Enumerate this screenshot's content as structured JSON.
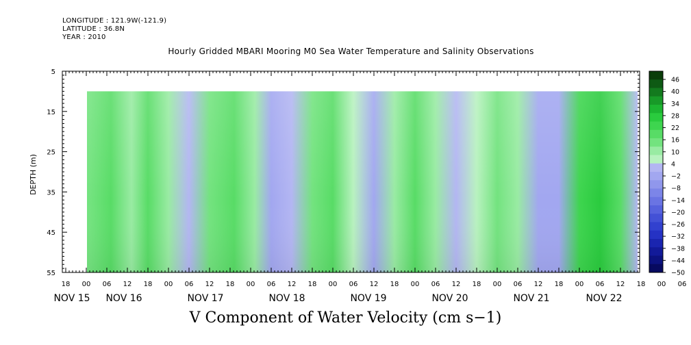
{
  "meta": {
    "longitude": "LONGITUDE : 121.9W(-121.9)",
    "latitude": "LATITUDE : 36.8N",
    "year": "YEAR : 2010"
  },
  "chart_data": {
    "type": "heatmap",
    "title": "Hourly Gridded MBARI Mooring M0 Sea Water Temperature and Salinity Observations",
    "xlabel": "V Component of Water Velocity (cm s−1)",
    "ylabel": "DEPTH (m)",
    "ylim": [
      55,
      5
    ],
    "yticks": [
      "5",
      "15",
      "25",
      "35",
      "45",
      "55"
    ],
    "x_hour_ticks": [
      "18",
      "00",
      "06",
      "12",
      "18",
      "00",
      "06",
      "12",
      "18",
      "00",
      "06",
      "12",
      "18",
      "00",
      "06",
      "12",
      "18",
      "00",
      "06",
      "12",
      "18",
      "00",
      "06",
      "12",
      "18",
      "00",
      "06",
      "12",
      "18",
      "00",
      "06",
      "12",
      "18"
    ],
    "x_day_labels": [
      "NOV 15",
      "NOV 16",
      "NOV 17",
      "NOV 18",
      "NOV 19",
      "NOV 20",
      "NOV 21",
      "NOV 22"
    ],
    "x_start_hour": 18,
    "data_depth_range": [
      10,
      55
    ],
    "colorbar": {
      "labels": [
        "46",
        "40",
        "34",
        "28",
        "22",
        "16",
        "10",
        "4",
        "−2",
        "−8",
        "−14",
        "−20",
        "−26",
        "−32",
        "−38",
        "−44",
        "−50"
      ],
      "positive_colors": [
        "#0a3d0a",
        "#0e5a14",
        "#137a1e",
        "#189a28",
        "#1db531",
        "#2acb3e",
        "#3ed54f",
        "#58dc66",
        "#73e37f",
        "#99eba3",
        "#b8f2bf"
      ],
      "negative_colors": [
        "#b3b6f2",
        "#a2a7f0",
        "#9097ec",
        "#7c85e8",
        "#6a74e3",
        "#5662dd",
        "#4351d6",
        "#3241cf",
        "#2532c4",
        "#1a25b0",
        "#121a99",
        "#0c1280",
        "#070a60"
      ]
    },
    "bands": [
      {
        "day": 0.05,
        "v": 12
      },
      {
        "day": 0.3,
        "v": 18
      },
      {
        "day": 0.55,
        "v": 8
      },
      {
        "day": 0.75,
        "v": 16
      },
      {
        "day": 1.0,
        "v": 6
      },
      {
        "day": 1.25,
        "v": -4
      },
      {
        "day": 1.5,
        "v": 14
      },
      {
        "day": 1.8,
        "v": 20
      },
      {
        "day": 2.05,
        "v": 6
      },
      {
        "day": 2.25,
        "v": -8
      },
      {
        "day": 2.5,
        "v": -6
      },
      {
        "day": 2.75,
        "v": 12
      },
      {
        "day": 3.0,
        "v": 18
      },
      {
        "day": 3.25,
        "v": -2
      },
      {
        "day": 3.5,
        "v": -8
      },
      {
        "day": 3.75,
        "v": 4
      },
      {
        "day": 4.0,
        "v": 16
      },
      {
        "day": 4.25,
        "v": 6
      },
      {
        "day": 4.5,
        "v": -6
      },
      {
        "day": 4.75,
        "v": 2
      },
      {
        "day": 5.0,
        "v": 14
      },
      {
        "day": 5.25,
        "v": 8
      },
      {
        "day": 5.5,
        "v": -8
      },
      {
        "day": 5.75,
        "v": -12
      },
      {
        "day": 6.0,
        "v": 24
      },
      {
        "day": 6.25,
        "v": 28
      },
      {
        "day": 6.5,
        "v": 20
      },
      {
        "day": 6.75,
        "v": -4
      },
      {
        "day": 7.0,
        "v": 10
      },
      {
        "day": 7.3,
        "v": -6
      }
    ]
  }
}
